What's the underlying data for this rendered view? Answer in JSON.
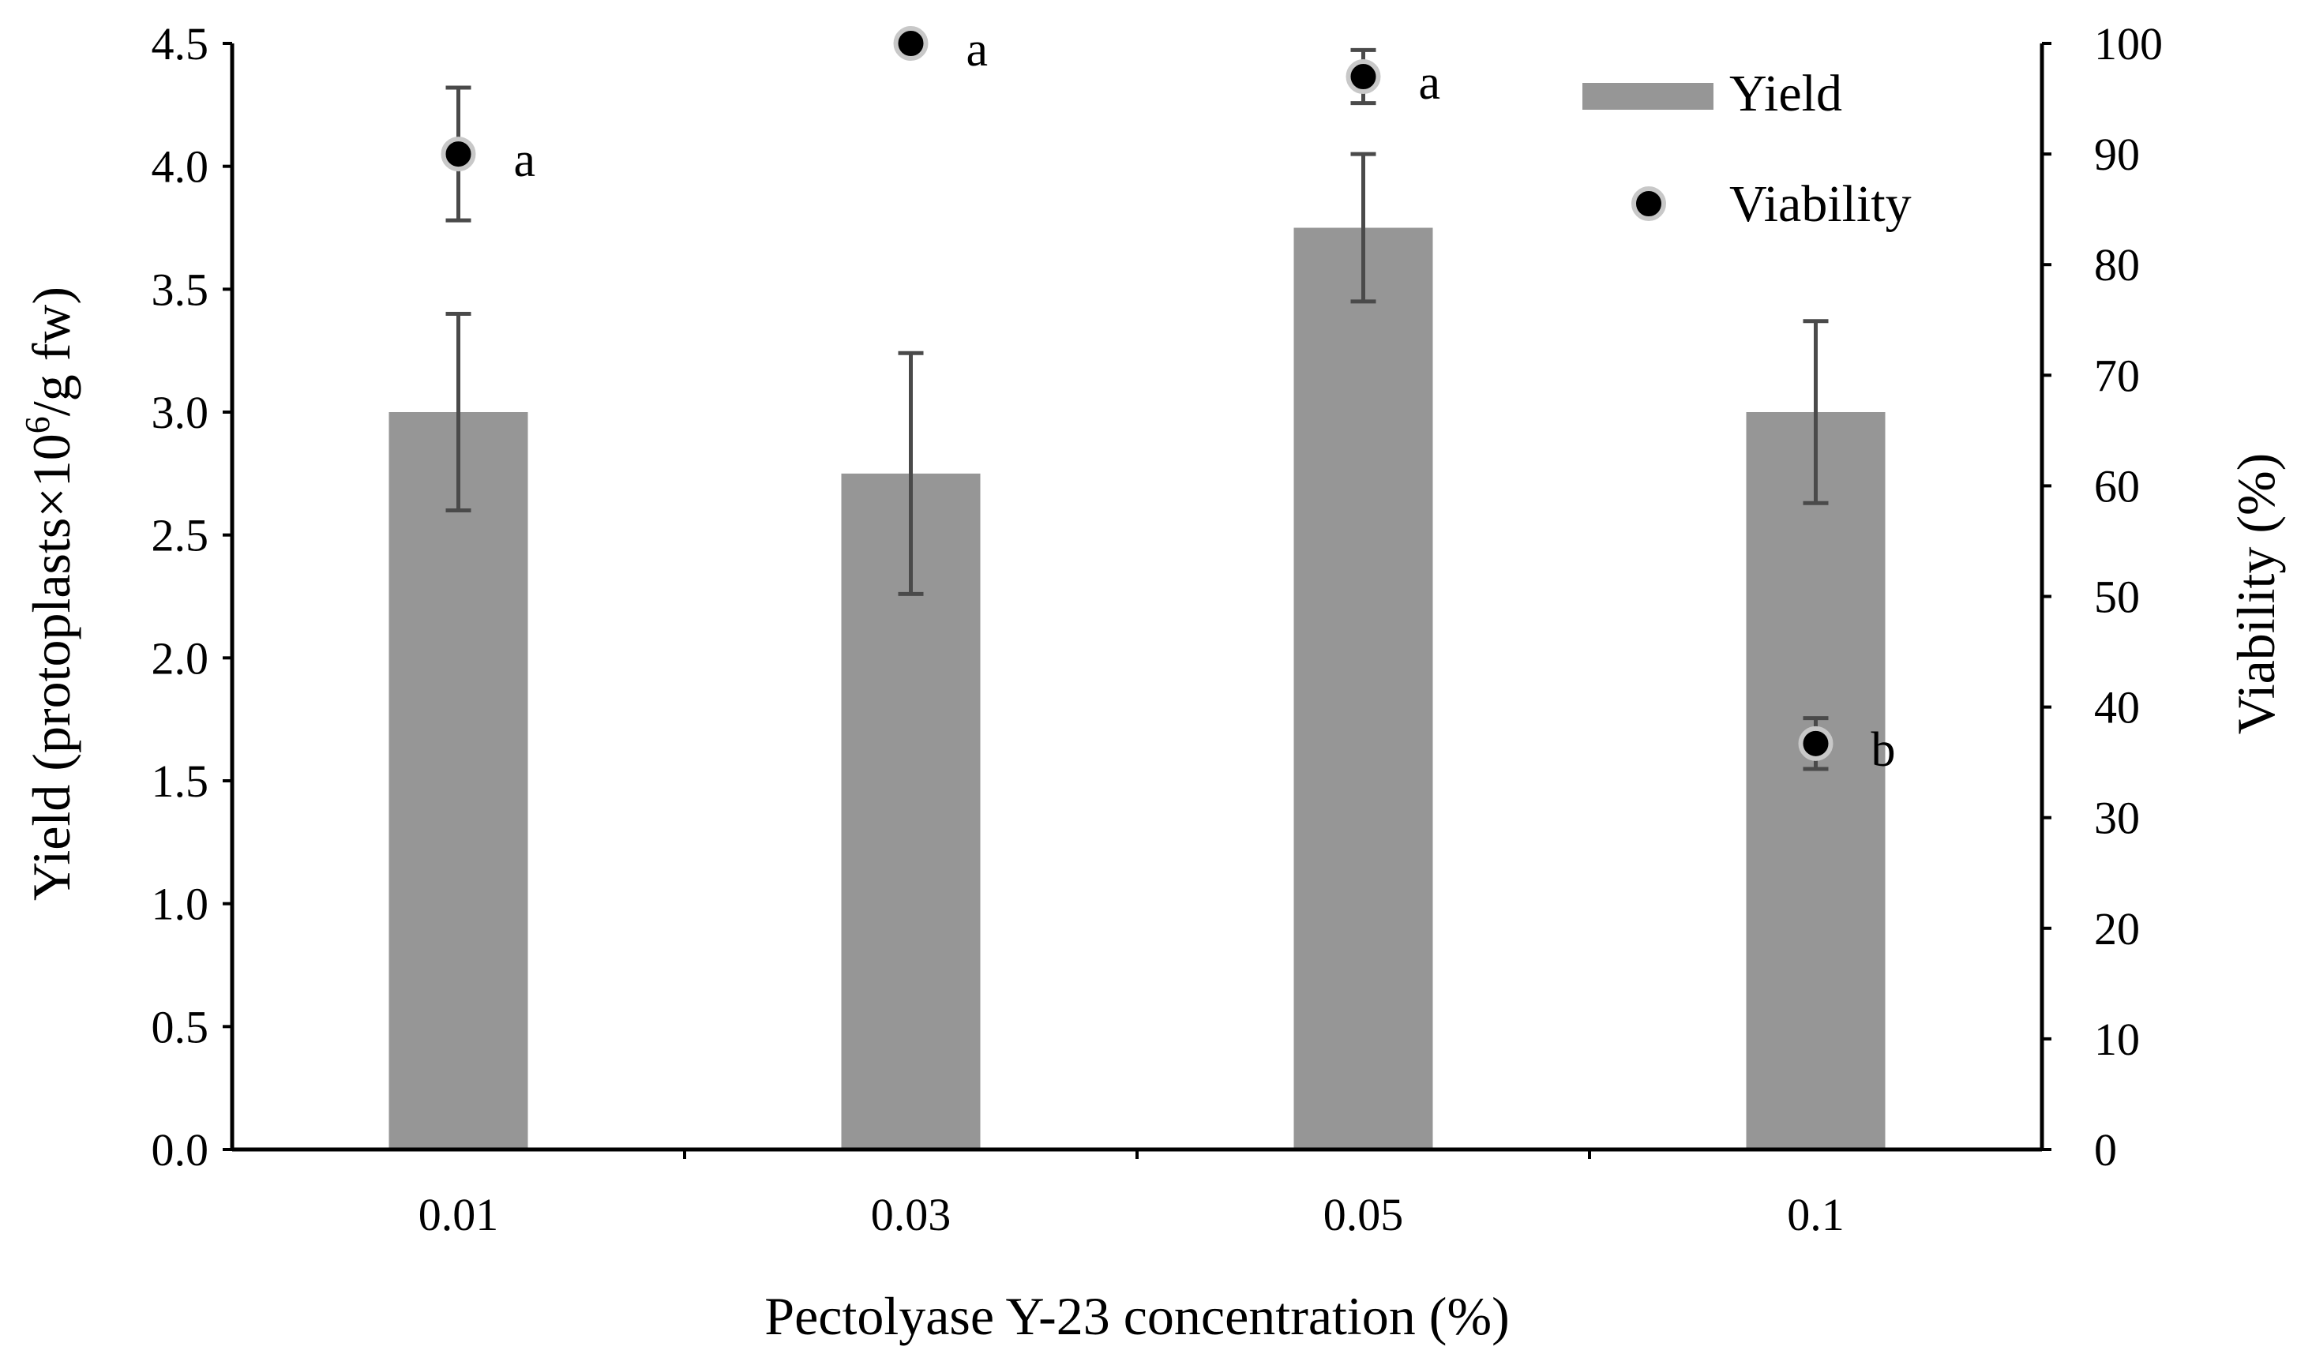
{
  "chart_data": {
    "type": "bar",
    "categories": [
      "0.01",
      "0.03",
      "0.05",
      "0.1"
    ],
    "xlabel": "Pectolyase Y-23 concentration (%)",
    "ylabel_prefix": "Yield (protoplasts×10",
    "ylabel_sup": "6",
    "ylabel_suffix": "/g fw)",
    "y2label": "Viability (%)",
    "ylim": [
      0,
      4.5
    ],
    "y2lim": [
      0,
      100
    ],
    "yticks": [
      "0.0",
      "0.5",
      "1.0",
      "1.5",
      "2.0",
      "2.5",
      "3.0",
      "3.5",
      "4.0",
      "4.5"
    ],
    "y2ticks": [
      "0",
      "10",
      "20",
      "30",
      "40",
      "50",
      "60",
      "70",
      "80",
      "90",
      "100"
    ],
    "legend_position": "top-right",
    "series": [
      {
        "name": "Yield",
        "kind": "bar",
        "axis": "left",
        "color": "#969696",
        "values": [
          3.0,
          2.75,
          3.75,
          3.0
        ],
        "error": [
          0.4,
          0.49,
          0.3,
          0.37
        ]
      },
      {
        "name": "Viability",
        "kind": "scatter",
        "axis": "right",
        "color": "#000000",
        "values": [
          90,
          100,
          97,
          36.7
        ],
        "error": [
          6.0,
          0,
          2.4,
          2.3
        ],
        "labels": [
          "a",
          "a",
          "a",
          "b"
        ]
      }
    ]
  }
}
